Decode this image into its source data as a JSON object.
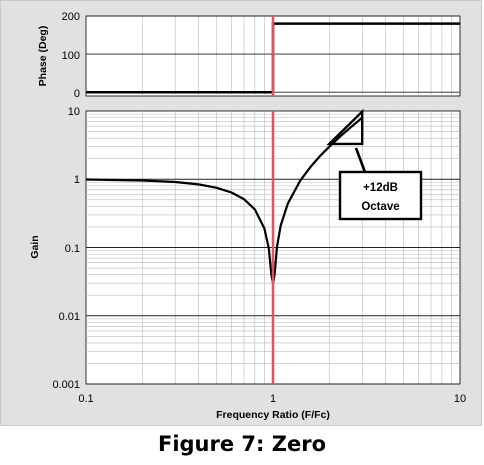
{
  "chart_data": {
    "type": "line",
    "caption": "Figure 7: Zero",
    "xlabel": "Frequency Ratio (F/Fc)",
    "x_scale": "log",
    "xlim": [
      0.1,
      10
    ],
    "x_tick_labels": [
      "0.1",
      "1",
      "10"
    ],
    "marker_line_x": 1,
    "plots": [
      {
        "name": "phase",
        "ylabel": "Phase (Deg)",
        "y_scale": "linear",
        "ylim": [
          -10,
          200
        ],
        "y_ticks": [
          0,
          100,
          200
        ],
        "y_tick_labels": [
          "0",
          "100",
          "200"
        ],
        "grid": true,
        "series": [
          {
            "x": [
              0.1,
              0.9999,
              1.0001,
              10
            ],
            "y": [
              0,
              0,
              180,
              180
            ]
          }
        ]
      },
      {
        "name": "gain",
        "ylabel": "Gain",
        "y_scale": "log",
        "ylim": [
          0.001,
          10
        ],
        "y_ticks": [
          0.001,
          0.01,
          0.1,
          1,
          10
        ],
        "y_tick_labels": [
          "0.001",
          "0.01",
          "0.1",
          "1",
          "10"
        ],
        "grid": true,
        "series": [
          {
            "x": [
              0.1,
              0.2,
              0.3,
              0.4,
              0.5,
              0.6,
              0.7,
              0.8,
              0.9,
              0.95,
              0.98,
              1.0,
              1.02,
              1.05,
              1.1,
              1.2,
              1.4,
              1.6,
              1.8,
              2.0,
              2.3,
              2.6,
              3.0
            ],
            "y": [
              0.99,
              0.96,
              0.91,
              0.84,
              0.75,
              0.64,
              0.51,
              0.36,
              0.19,
              0.0975,
              0.0396,
              0.03,
              0.0404,
              0.1025,
              0.21,
              0.44,
              0.96,
              1.56,
              2.24,
              3.0,
              4.29,
              5.76,
              8.0
            ]
          }
        ],
        "annotation": {
          "lines": [
            "+12dB",
            "Octave"
          ],
          "slope_x": [
            2,
            3
          ],
          "slope_y": [
            3.3,
            9.8
          ]
        }
      }
    ]
  }
}
